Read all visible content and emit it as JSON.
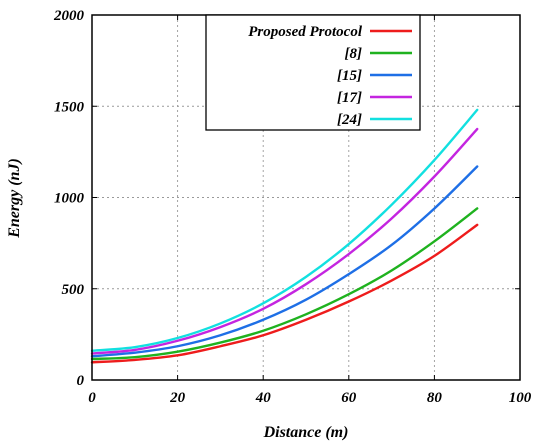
{
  "chart_data": {
    "type": "line",
    "title": "",
    "xlabel": "Distance (m)",
    "ylabel": "Energy (nJ)",
    "xlim": [
      0,
      100
    ],
    "ylim": [
      0,
      2000
    ],
    "xticks": [
      0,
      20,
      40,
      60,
      80,
      100
    ],
    "yticks": [
      0,
      500,
      1000,
      1500,
      2000
    ],
    "grid": true,
    "legend_position": "top-right",
    "x": [
      0,
      10,
      20,
      30,
      40,
      50,
      60,
      70,
      80,
      90
    ],
    "series": [
      {
        "name": "Proposed Protocol",
        "color": "#ee1c1c",
        "values": [
          97,
          110,
          135,
          185,
          245,
          330,
          430,
          545,
          680,
          850
        ]
      },
      {
        "name": "[8]",
        "color": "#1fb21f",
        "values": [
          115,
          125,
          155,
          205,
          270,
          360,
          470,
          600,
          760,
          940
        ]
      },
      {
        "name": "[15]",
        "color": "#1e6fe6",
        "values": [
          130,
          150,
          185,
          245,
          330,
          440,
          580,
          740,
          940,
          1170
        ]
      },
      {
        "name": "[17]",
        "color": "#c425e0",
        "values": [
          145,
          165,
          215,
          290,
          390,
          525,
          690,
          885,
          1115,
          1375
        ]
      },
      {
        "name": "[24]",
        "color": "#12e0e0",
        "values": [
          160,
          180,
          230,
          310,
          420,
          565,
          745,
          960,
          1205,
          1480
        ]
      }
    ]
  }
}
